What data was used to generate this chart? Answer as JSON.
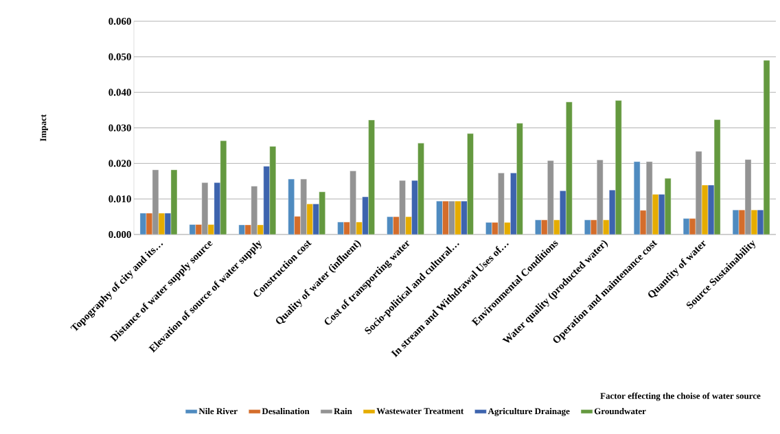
{
  "chart_data": {
    "type": "bar",
    "xlabel": "Factor effecting the choise of water source",
    "ylabel": "Impact",
    "categories": [
      "Topography of city and its…",
      "Distance of water supply source",
      "Elevation of source of water supply",
      "Construction cost",
      "Quality of water (influent)",
      "Cost of transporting water",
      "Socio-political and cultural…",
      "In stream and Withdrawal Uses of…",
      "Environmental Conditions",
      "Water quality (producted water)",
      "Operation and maintenance cost",
      "Quantity of water",
      "Source Sustainability"
    ],
    "series": [
      {
        "name": "Nile River",
        "color": "#4f8bc0",
        "values": [
          0.006,
          0.0028,
          0.0027,
          0.0156,
          0.0035,
          0.005,
          0.0094,
          0.0034,
          0.0041,
          0.0041,
          0.0205,
          0.0045,
          0.0069
        ]
      },
      {
        "name": "Desalination",
        "color": "#d46d2b",
        "values": [
          0.006,
          0.0028,
          0.0027,
          0.0051,
          0.0035,
          0.005,
          0.0094,
          0.0034,
          0.0041,
          0.0041,
          0.0068,
          0.0045,
          0.0069
        ]
      },
      {
        "name": "Rain",
        "color": "#939393",
        "values": [
          0.0182,
          0.0146,
          0.0136,
          0.0156,
          0.0179,
          0.0152,
          0.0094,
          0.0173,
          0.0208,
          0.021,
          0.0205,
          0.0234,
          0.0211
        ]
      },
      {
        "name": "Wastewater Treatment",
        "color": "#e5ac00",
        "values": [
          0.006,
          0.0028,
          0.0027,
          0.0086,
          0.0035,
          0.005,
          0.0094,
          0.0034,
          0.0041,
          0.0041,
          0.0113,
          0.0139,
          0.0069
        ]
      },
      {
        "name": "Agriculture Drainage",
        "color": "#3d64ae",
        "values": [
          0.006,
          0.0146,
          0.0192,
          0.0086,
          0.0106,
          0.0152,
          0.0094,
          0.0173,
          0.0123,
          0.0125,
          0.0113,
          0.0139,
          0.0069
        ]
      },
      {
        "name": "Groundwater",
        "color": "#64993f",
        "values": [
          0.0182,
          0.0264,
          0.0248,
          0.012,
          0.0322,
          0.0257,
          0.0284,
          0.0313,
          0.0373,
          0.0377,
          0.0158,
          0.0323,
          0.049
        ]
      }
    ],
    "ylim": [
      0,
      0.06
    ],
    "yticks": [
      {
        "value": 0,
        "label": "0.000"
      },
      {
        "value": 0.01,
        "label": "0.010"
      },
      {
        "value": 0.02,
        "label": "0.020"
      },
      {
        "value": 0.03,
        "label": "0.030"
      },
      {
        "value": 0.04,
        "label": "0.040"
      },
      {
        "value": 0.05,
        "label": "0.050"
      },
      {
        "value": 0.06,
        "label": "0.060"
      }
    ],
    "grid": "y",
    "legend": "bottom"
  }
}
